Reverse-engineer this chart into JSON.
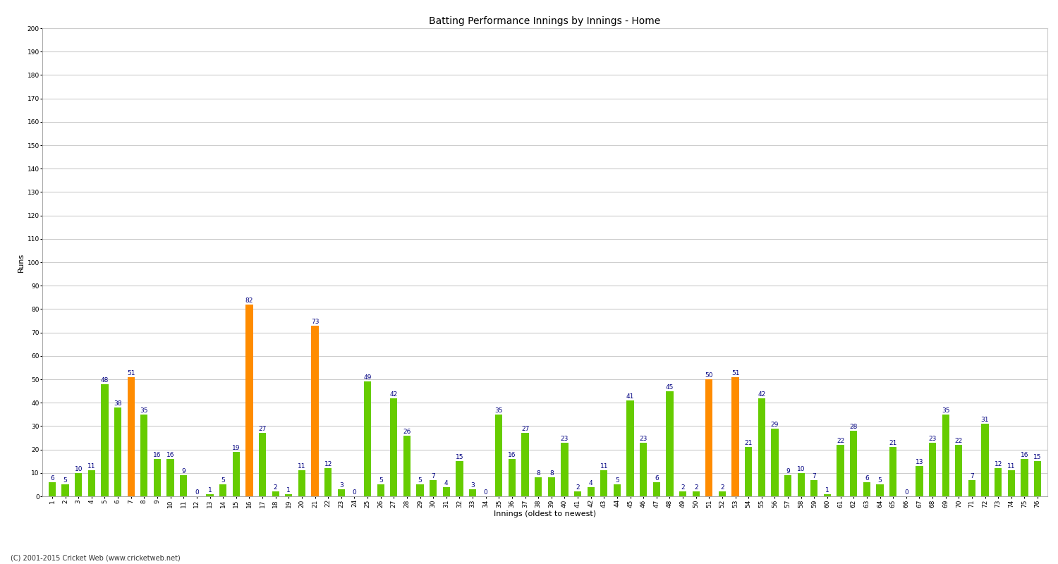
{
  "title": "Batting Performance Innings by Innings - Home",
  "xlabel": "Innings (oldest to newest)",
  "ylabel": "Runs",
  "footer": "(C) 2001-2015 Cricket Web (www.cricketweb.net)",
  "ylim": [
    0,
    200
  ],
  "yticks": [
    0,
    10,
    20,
    30,
    40,
    50,
    60,
    70,
    80,
    90,
    100,
    110,
    120,
    130,
    140,
    150,
    160,
    170,
    180,
    190,
    200
  ],
  "values": [
    6,
    5,
    10,
    11,
    48,
    38,
    51,
    35,
    16,
    16,
    9,
    0,
    1,
    5,
    19,
    82,
    27,
    2,
    1,
    11,
    73,
    12,
    3,
    0,
    49,
    5,
    42,
    26,
    5,
    7,
    4,
    15,
    3,
    0,
    35,
    16,
    27,
    8,
    8,
    23,
    2,
    4,
    11,
    5,
    41,
    23,
    6,
    45,
    2,
    2,
    50,
    2,
    51,
    21,
    42,
    29,
    9,
    10,
    7,
    1,
    22,
    28,
    6,
    5,
    21,
    0,
    13,
    23,
    35,
    22,
    7,
    31,
    12,
    11,
    16,
    15
  ],
  "colors": [
    "#66cc00",
    "#66cc00",
    "#66cc00",
    "#66cc00",
    "#66cc00",
    "#66cc00",
    "#ff8c00",
    "#66cc00",
    "#66cc00",
    "#66cc00",
    "#66cc00",
    "#66cc00",
    "#66cc00",
    "#66cc00",
    "#66cc00",
    "#ff8c00",
    "#66cc00",
    "#66cc00",
    "#66cc00",
    "#66cc00",
    "#ff8c00",
    "#66cc00",
    "#66cc00",
    "#66cc00",
    "#66cc00",
    "#66cc00",
    "#66cc00",
    "#66cc00",
    "#66cc00",
    "#66cc00",
    "#66cc00",
    "#66cc00",
    "#66cc00",
    "#66cc00",
    "#66cc00",
    "#66cc00",
    "#66cc00",
    "#66cc00",
    "#66cc00",
    "#66cc00",
    "#66cc00",
    "#66cc00",
    "#66cc00",
    "#66cc00",
    "#66cc00",
    "#66cc00",
    "#66cc00",
    "#66cc00",
    "#66cc00",
    "#66cc00",
    "#ff8c00",
    "#66cc00",
    "#ff8c00",
    "#66cc00",
    "#66cc00",
    "#66cc00",
    "#66cc00",
    "#66cc00",
    "#66cc00",
    "#66cc00",
    "#66cc00",
    "#66cc00",
    "#66cc00",
    "#66cc00",
    "#66cc00",
    "#66cc00",
    "#66cc00",
    "#66cc00",
    "#66cc00",
    "#66cc00",
    "#66cc00",
    "#66cc00",
    "#66cc00",
    "#66cc00",
    "#66cc00",
    "#66cc00"
  ],
  "xtick_labels": [
    "1",
    "2",
    "3",
    "4",
    "5",
    "6",
    "7",
    "8",
    "9",
    "10",
    "11",
    "12",
    "13",
    "14",
    "15",
    "16",
    "17",
    "18",
    "19",
    "20",
    "21",
    "22",
    "23",
    "24",
    "25",
    "26",
    "27",
    "28",
    "29",
    "30",
    "31",
    "32",
    "33",
    "34",
    "35",
    "36",
    "37",
    "38",
    "39",
    "40",
    "41",
    "42",
    "43",
    "44",
    "45",
    "46",
    "47",
    "48",
    "49",
    "50",
    "51",
    "52",
    "53",
    "54",
    "55",
    "56",
    "57",
    "58",
    "59",
    "60",
    "61",
    "62",
    "63",
    "64",
    "65",
    "66",
    "67",
    "68",
    "69",
    "70",
    "71",
    "72",
    "73",
    "74",
    "75",
    "76"
  ],
  "bg_color": "#ffffff",
  "grid_color": "#cccccc",
  "bar_label_color": "#000080",
  "bar_label_fontsize": 6.5,
  "axis_label_fontsize": 8,
  "title_fontsize": 10,
  "tick_fontsize": 6.5,
  "bar_width": 0.55
}
